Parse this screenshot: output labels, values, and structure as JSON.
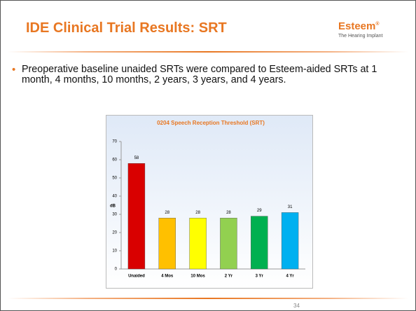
{
  "slide": {
    "title": "IDE Clinical Trial Results:  SRT",
    "logo": {
      "name": "Esteem",
      "mark": "®",
      "tagline": "The Hearing Implant"
    },
    "bullet": "Preoperative baseline unaided SRTs were compared to Esteem-aided SRTs at 1 month, 4 months, 10 months, 2 years, 3 years, and 4 years.",
    "page_number": "34"
  },
  "chart_data": {
    "type": "bar",
    "title": "0204 Speech Reception Threshold (SRT)",
    "y_label": "dB",
    "categories": [
      "Unaided",
      "4 Mos",
      "10 Mos",
      "2 Yr",
      "3 Yr",
      "4 Yr"
    ],
    "values": [
      58,
      28,
      28,
      28,
      29,
      31
    ],
    "colors": [
      "#d90000",
      "#ffc000",
      "#ffff00",
      "#92d050",
      "#00b050",
      "#00b0f0"
    ],
    "ylim": [
      0,
      70
    ],
    "yticks": [
      0,
      10,
      20,
      30,
      40,
      50,
      60,
      70
    ],
    "grid": false
  }
}
